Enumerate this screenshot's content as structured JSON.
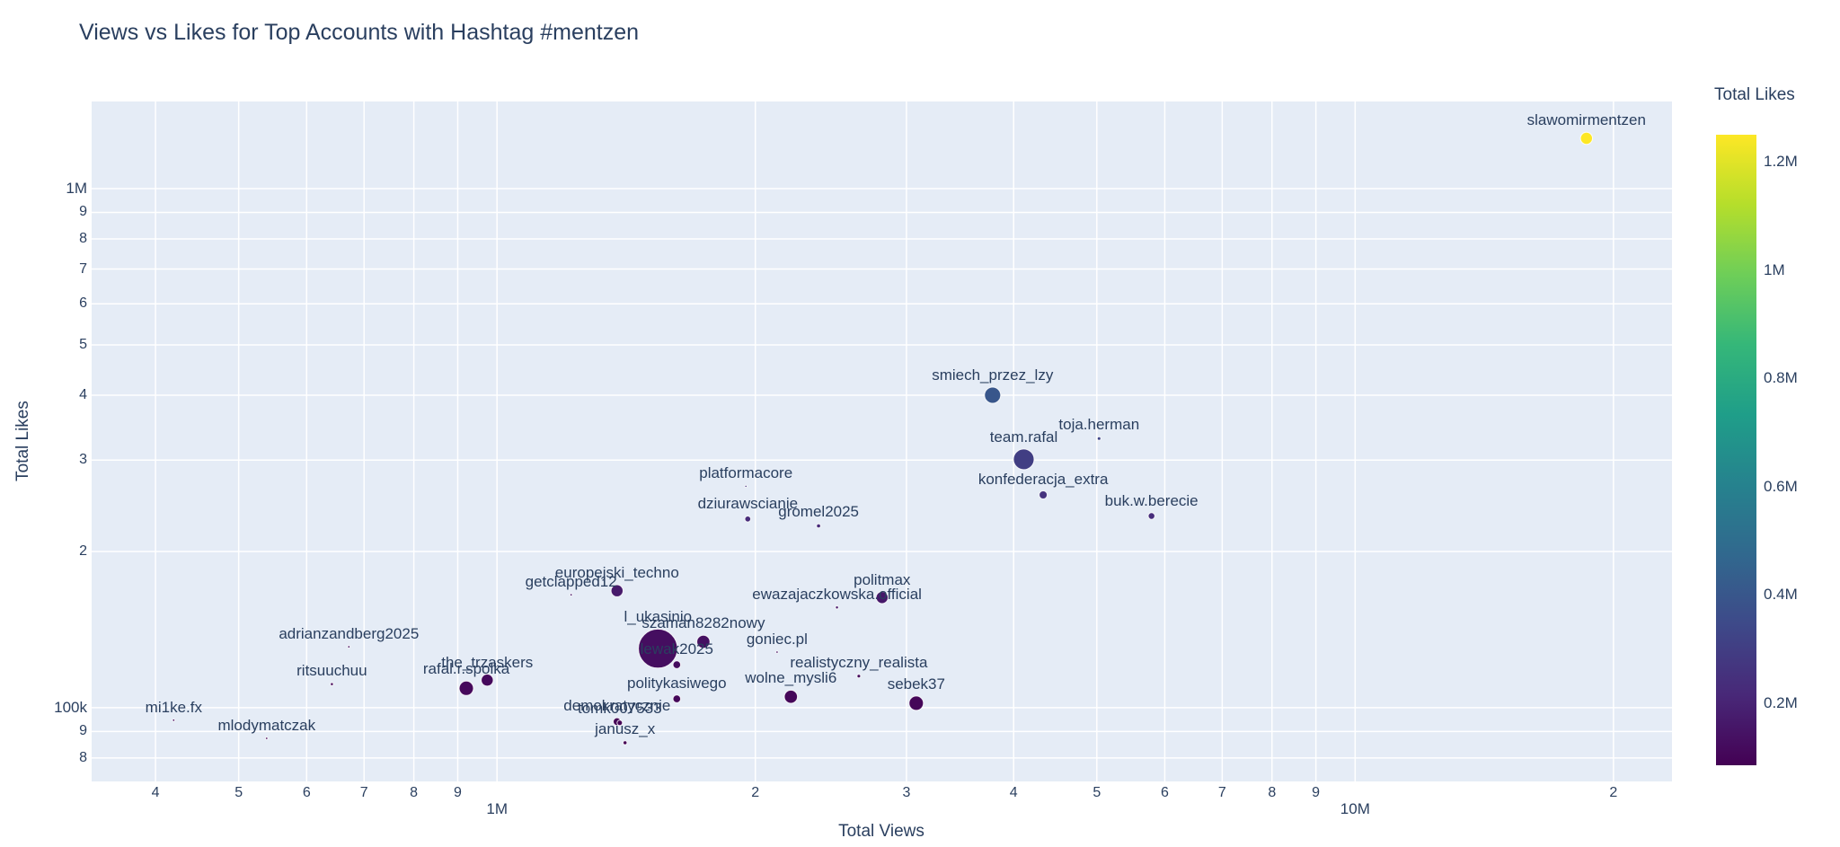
{
  "chart_data": {
    "type": "scatter",
    "title": "Views vs Likes for Top Accounts with Hashtag #mentzen",
    "xlabel": "Total Views",
    "ylabel": "Total Likes",
    "x_scale": "log",
    "y_scale": "log",
    "x_range": [
      337000,
      23400000
    ],
    "y_range": [
      72100,
      1472000
    ],
    "grid": true,
    "plot_bg": "#E5ECF6",
    "grid_color": "#ffffff",
    "text_color": "#2a3f5f",
    "x_ticks": [
      {
        "label": "4",
        "value": 400000,
        "major": false
      },
      {
        "label": "5",
        "value": 500000,
        "major": false
      },
      {
        "label": "6",
        "value": 600000,
        "major": false
      },
      {
        "label": "7",
        "value": 700000,
        "major": false
      },
      {
        "label": "8",
        "value": 800000,
        "major": false
      },
      {
        "label": "9",
        "value": 900000,
        "major": false
      },
      {
        "label": "1M",
        "value": 1000000,
        "major": true
      },
      {
        "label": "2",
        "value": 2000000,
        "major": false
      },
      {
        "label": "3",
        "value": 3000000,
        "major": false
      },
      {
        "label": "4",
        "value": 4000000,
        "major": false
      },
      {
        "label": "5",
        "value": 5000000,
        "major": false
      },
      {
        "label": "6",
        "value": 6000000,
        "major": false
      },
      {
        "label": "7",
        "value": 7000000,
        "major": false
      },
      {
        "label": "8",
        "value": 8000000,
        "major": false
      },
      {
        "label": "9",
        "value": 9000000,
        "major": false
      },
      {
        "label": "10M",
        "value": 10000000,
        "major": true
      },
      {
        "label": "2",
        "value": 20000000,
        "major": false
      }
    ],
    "y_ticks": [
      {
        "label": "1M",
        "value": 1000000,
        "major": true
      },
      {
        "label": "9",
        "value": 900000,
        "major": false
      },
      {
        "label": "8",
        "value": 800000,
        "major": false
      },
      {
        "label": "7",
        "value": 700000,
        "major": false
      },
      {
        "label": "6",
        "value": 600000,
        "major": false
      },
      {
        "label": "5",
        "value": 500000,
        "major": false
      },
      {
        "label": "4",
        "value": 400000,
        "major": false
      },
      {
        "label": "3",
        "value": 300000,
        "major": false
      },
      {
        "label": "2",
        "value": 200000,
        "major": false
      },
      {
        "label": "100k",
        "value": 100000,
        "major": true
      },
      {
        "label": "9",
        "value": 90000,
        "major": false
      },
      {
        "label": "8",
        "value": 80000,
        "major": false
      }
    ],
    "colorbar": {
      "title": "Total Likes",
      "cmin": 85600,
      "cmax": 1250000,
      "ticks": [
        {
          "label": "1.2M",
          "value": 1200000
        },
        {
          "label": "1M",
          "value": 1000000
        },
        {
          "label": "0.8M",
          "value": 800000
        },
        {
          "label": "0.6M",
          "value": 600000
        },
        {
          "label": "0.4M",
          "value": 400000
        },
        {
          "label": "0.2M",
          "value": 200000
        }
      ]
    },
    "colorscale": [
      [
        0.0,
        "#440154"
      ],
      [
        0.111,
        "#482878"
      ],
      [
        0.222,
        "#3e4989"
      ],
      [
        0.333,
        "#31688e"
      ],
      [
        0.444,
        "#26828e"
      ],
      [
        0.556,
        "#1f9e89"
      ],
      [
        0.667,
        "#35b779"
      ],
      [
        0.778,
        "#6ece58"
      ],
      [
        0.889,
        "#b5de2b"
      ],
      [
        1.0,
        "#fde725"
      ]
    ],
    "points": [
      {
        "name": "slawomirmentzen",
        "views": 18600000,
        "likes": 1250000,
        "marker_r": 6.7
      },
      {
        "name": "smiech_przez_lzy",
        "views": 3780000,
        "likes": 400000,
        "marker_r": 9
      },
      {
        "name": "team.rafal",
        "views": 4110000,
        "likes": 301000,
        "marker_r": 11.5
      },
      {
        "name": "toja.herman",
        "views": 5030000,
        "likes": 330000,
        "marker_r": 2
      },
      {
        "name": "konfederacja_extra",
        "views": 4330000,
        "likes": 257000,
        "marker_r": 4.5
      },
      {
        "name": "buk.w.berecie",
        "views": 5790000,
        "likes": 234000,
        "marker_r": 3.7
      },
      {
        "name": "platformacore",
        "views": 1950000,
        "likes": 267000,
        "marker_r": 1.2
      },
      {
        "name": "dziurawscianie",
        "views": 1960000,
        "likes": 231000,
        "marker_r": 3.3
      },
      {
        "name": "gromel2025",
        "views": 2370000,
        "likes": 224000,
        "marker_r": 2.3
      },
      {
        "name": "europejski_techno",
        "views": 1380000,
        "likes": 168000,
        "marker_r": 6.7
      },
      {
        "name": "getclapped12",
        "views": 1220000,
        "likes": 165000,
        "marker_r": 1.3
      },
      {
        "name": "politmax",
        "views": 2810000,
        "likes": 163000,
        "marker_r": 6.7
      },
      {
        "name": "ewazajaczkowska.official",
        "views": 2490000,
        "likes": 156000,
        "marker_r": 1.7
      },
      {
        "name": "l_ukasinio",
        "views": 1540000,
        "likes": 130000,
        "marker_r": 21.7
      },
      {
        "name": "szaman8282nowy",
        "views": 1740000,
        "likes": 134000,
        "marker_r": 7.3
      },
      {
        "name": "lewak2025",
        "views": 1620000,
        "likes": 121000,
        "marker_r": 4.3
      },
      {
        "name": "goniec.pl",
        "views": 2120000,
        "likes": 128000,
        "marker_r": 1.3
      },
      {
        "name": "realistyczny_realista",
        "views": 2640000,
        "likes": 115000,
        "marker_r": 2
      },
      {
        "name": "wolne_mysli6",
        "views": 2200000,
        "likes": 105000,
        "marker_r": 7.3
      },
      {
        "name": "politykasiwego",
        "views": 1620000,
        "likes": 104000,
        "marker_r": 4.3
      },
      {
        "name": "sebek37",
        "views": 3080000,
        "likes": 102000,
        "marker_r": 8
      },
      {
        "name": "adrianzandberg2025",
        "views": 672000,
        "likes": 131000,
        "marker_r": 1.3
      },
      {
        "name": "ritsuuchuu",
        "views": 642000,
        "likes": 111000,
        "marker_r": 1.7
      },
      {
        "name": "the_trzaskers",
        "views": 974000,
        "likes": 113000,
        "marker_r": 6.7
      },
      {
        "name": "rafal.r.spolka",
        "views": 921000,
        "likes": 109000,
        "marker_r": 8
      },
      {
        "name": "mi1ke.fx",
        "views": 420000,
        "likes": 94600,
        "marker_r": 1.3
      },
      {
        "name": "mlodymatczak",
        "views": 539000,
        "likes": 87300,
        "marker_r": 1.3
      },
      {
        "name": "demokratycznie",
        "views": 1380000,
        "likes": 94000,
        "marker_r": 4.3
      },
      {
        "name": "tomk007533",
        "views": 1390000,
        "likes": 93500,
        "marker_r": 3
      },
      {
        "name": "janusz_x",
        "views": 1410000,
        "likes": 85600,
        "marker_r": 2.2
      }
    ]
  }
}
